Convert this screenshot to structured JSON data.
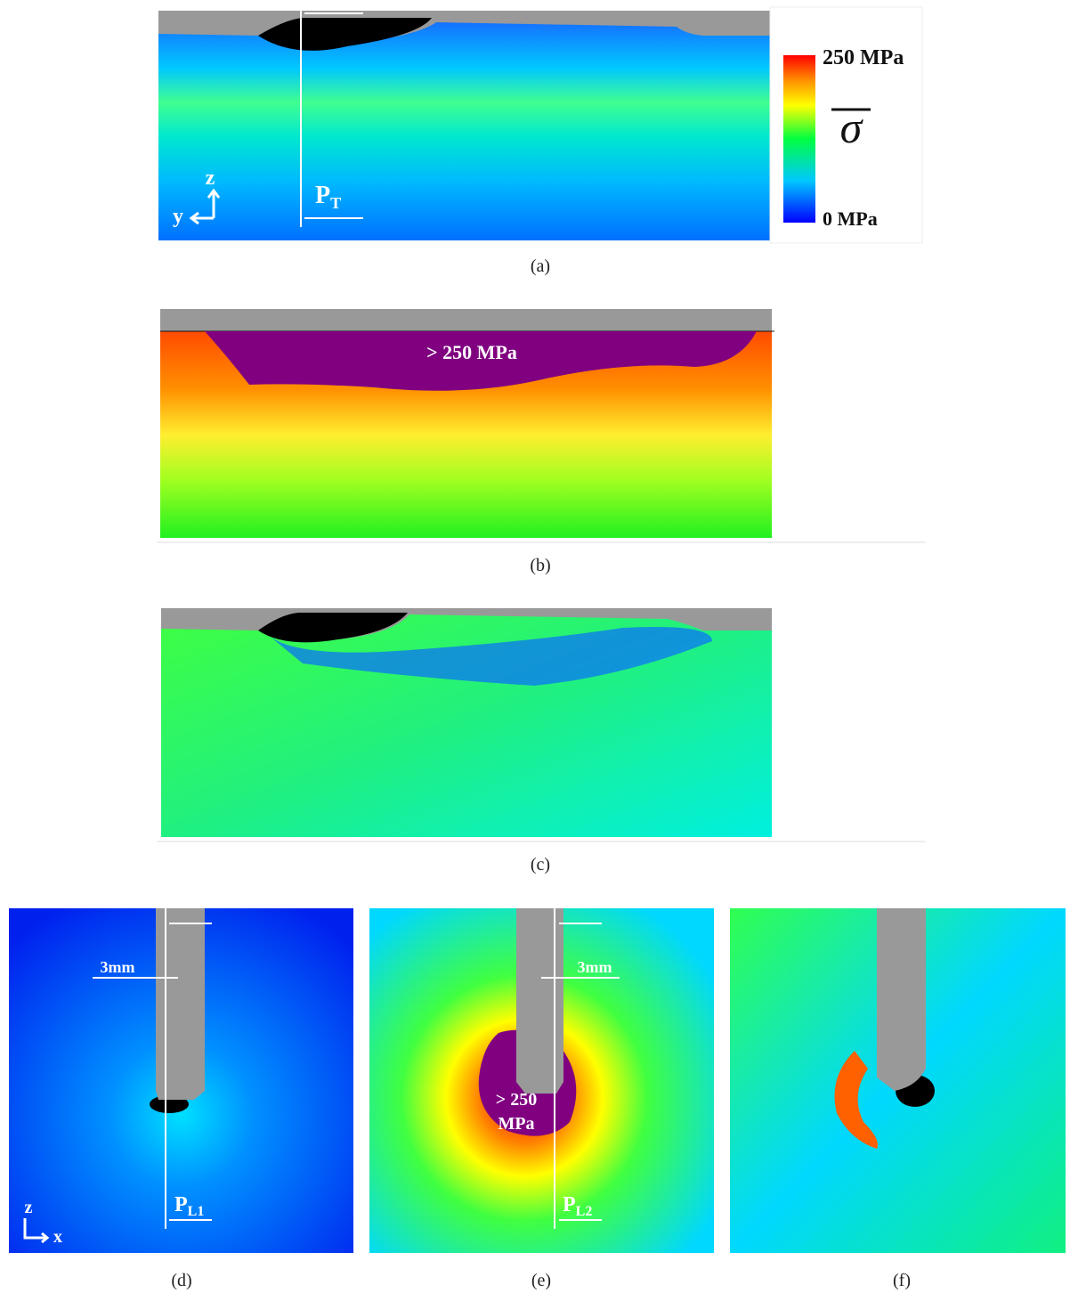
{
  "colorbar": {
    "max_label": "250 MPa",
    "min_label": "0 MPa",
    "symbol": "σ"
  },
  "panels": [
    {
      "label": "(a)",
      "axes": {
        "vertical": "z",
        "horizontal": "y"
      },
      "probe": {
        "main": "P",
        "sub": "T"
      }
    },
    {
      "label": "(b)",
      "annotation": "> 250 MPa"
    },
    {
      "label": "(c)"
    },
    {
      "label": "(d)",
      "axes": {
        "vertical": "z",
        "horizontal": "x"
      },
      "offset": "3mm",
      "probe": {
        "main": "P",
        "sub": "L1"
      }
    },
    {
      "label": "(e)",
      "annotation_lines": [
        "> 250",
        "MPa"
      ],
      "offset": "3mm",
      "probe": {
        "main": "P",
        "sub": "L2"
      }
    },
    {
      "label": "(f)"
    }
  ]
}
